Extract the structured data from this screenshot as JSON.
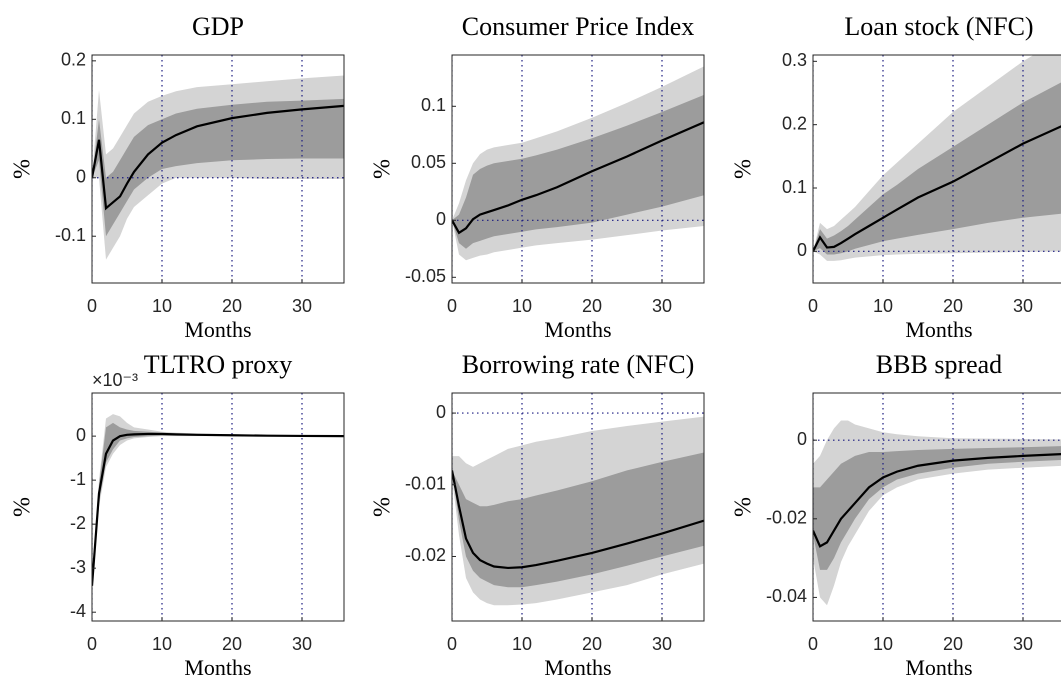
{
  "chart_data": [
    {
      "type": "line",
      "title": "GDP",
      "xlabel": "Months",
      "ylabel": "%",
      "x": [
        0,
        1,
        2,
        3,
        4,
        5,
        6,
        8,
        10,
        12,
        15,
        20,
        25,
        30,
        36
      ],
      "xlim": [
        0,
        36
      ],
      "xticks": [
        0,
        10,
        20,
        30
      ],
      "ylim": [
        -0.18,
        0.21
      ],
      "yticks": [
        -0.1,
        0,
        0.1,
        0.2
      ],
      "grid": true,
      "zero_line": true,
      "bands": [
        {
          "color": "#d4d4d4",
          "lower": [
            0,
            0.0,
            -0.14,
            -0.12,
            -0.1,
            -0.07,
            -0.05,
            -0.03,
            -0.01,
            0,
            0,
            0,
            -0.002,
            -0.002,
            -0.002
          ],
          "upper": [
            0,
            0.15,
            0.04,
            0.05,
            0.07,
            0.09,
            0.11,
            0.13,
            0.14,
            0.148,
            0.155,
            0.16,
            0.165,
            0.17,
            0.175
          ]
        },
        {
          "color": "#9c9c9c",
          "lower": [
            0,
            0.03,
            -0.1,
            -0.08,
            -0.06,
            -0.04,
            -0.02,
            0.0,
            0.015,
            0.02,
            0.025,
            0.03,
            0.032,
            0.033,
            0.033
          ],
          "upper": [
            0,
            0.1,
            0.0,
            0.01,
            0.03,
            0.05,
            0.07,
            0.09,
            0.1,
            0.11,
            0.118,
            0.125,
            0.13,
            0.132,
            0.135
          ]
        }
      ],
      "series": [
        {
          "color": "#000000",
          "values": [
            0,
            0.065,
            -0.052,
            -0.042,
            -0.032,
            -0.01,
            0.01,
            0.04,
            0.06,
            0.073,
            0.088,
            0.102,
            0.111,
            0.117,
            0.123
          ]
        }
      ]
    },
    {
      "type": "line",
      "title": "Consumer Price Index",
      "xlabel": "Months",
      "ylabel": "%",
      "x": [
        0,
        1,
        2,
        3,
        4,
        5,
        6,
        8,
        10,
        12,
        15,
        20,
        25,
        30,
        36
      ],
      "xlim": [
        0,
        36
      ],
      "xticks": [
        0,
        10,
        20,
        30
      ],
      "ylim": [
        -0.055,
        0.145
      ],
      "yticks": [
        -0.05,
        0,
        0.05,
        0.1
      ],
      "grid": true,
      "zero_line": true,
      "bands": [
        {
          "color": "#d4d4d4",
          "lower": [
            0,
            -0.03,
            -0.035,
            -0.033,
            -0.031,
            -0.03,
            -0.028,
            -0.026,
            -0.024,
            -0.022,
            -0.02,
            -0.017,
            -0.013,
            -0.009,
            -0.005
          ],
          "upper": [
            0,
            0.015,
            0.035,
            0.05,
            0.058,
            0.062,
            0.064,
            0.066,
            0.068,
            0.072,
            0.078,
            0.09,
            0.103,
            0.117,
            0.135
          ]
        },
        {
          "color": "#9c9c9c",
          "lower": [
            0,
            -0.02,
            -0.025,
            -0.02,
            -0.018,
            -0.016,
            -0.014,
            -0.012,
            -0.01,
            -0.008,
            -0.006,
            -0.002,
            0.005,
            0.012,
            0.022
          ],
          "upper": [
            0,
            0.005,
            0.02,
            0.04,
            0.045,
            0.048,
            0.05,
            0.052,
            0.054,
            0.057,
            0.062,
            0.072,
            0.083,
            0.095,
            0.11
          ]
        }
      ],
      "series": [
        {
          "color": "#000000",
          "values": [
            0,
            -0.011,
            -0.007,
            0.001,
            0.005,
            0.007,
            0.009,
            0.013,
            0.018,
            0.022,
            0.029,
            0.043,
            0.056,
            0.07,
            0.086
          ]
        }
      ]
    },
    {
      "type": "line",
      "title": "Loan stock (NFC)",
      "xlabel": "Months",
      "ylabel": "%",
      "x": [
        0,
        1,
        2,
        3,
        4,
        5,
        6,
        8,
        10,
        12,
        15,
        20,
        25,
        30,
        36
      ],
      "xlim": [
        0,
        36
      ],
      "xticks": [
        0,
        10,
        20,
        30
      ],
      "ylim": [
        -0.05,
        0.31
      ],
      "yticks": [
        0,
        0.1,
        0.2,
        0.3
      ],
      "grid": true,
      "zero_line": true,
      "bands": [
        {
          "color": "#d4d4d4",
          "lower": [
            0,
            -0.005,
            -0.015,
            -0.015,
            -0.014,
            -0.012,
            -0.01,
            -0.008,
            -0.006,
            -0.005,
            -0.004,
            -0.003,
            -0.002,
            -0.001,
            0
          ],
          "upper": [
            0,
            0.045,
            0.035,
            0.04,
            0.05,
            0.06,
            0.07,
            0.095,
            0.12,
            0.14,
            0.17,
            0.22,
            0.26,
            0.3,
            0.34
          ]
        },
        {
          "color": "#9c9c9c",
          "lower": [
            0,
            0.005,
            -0.005,
            -0.005,
            -0.003,
            0,
            0.004,
            0.01,
            0.016,
            0.02,
            0.026,
            0.035,
            0.045,
            0.053,
            0.06
          ],
          "upper": [
            0,
            0.035,
            0.02,
            0.025,
            0.032,
            0.04,
            0.05,
            0.07,
            0.09,
            0.105,
            0.13,
            0.165,
            0.2,
            0.235,
            0.27
          ]
        }
      ],
      "series": [
        {
          "color": "#000000",
          "values": [
            0,
            0.022,
            0.006,
            0.007,
            0.013,
            0.02,
            0.027,
            0.04,
            0.053,
            0.066,
            0.085,
            0.11,
            0.14,
            0.17,
            0.2
          ]
        }
      ]
    },
    {
      "type": "line",
      "title": "TLTRO proxy",
      "xlabel": "Months",
      "ylabel": "%",
      "y_multiplier": "×10⁻³",
      "x": [
        0,
        1,
        2,
        3,
        4,
        5,
        6,
        8,
        10,
        12,
        15,
        20,
        25,
        30,
        36
      ],
      "xlim": [
        0,
        36
      ],
      "xticks": [
        0,
        10,
        20,
        30
      ],
      "ylim": [
        -4.2,
        0.98
      ],
      "yticks": [
        -4,
        -3,
        -2,
        -1,
        0
      ],
      "grid": true,
      "zero_line": false,
      "bands": [
        {
          "color": "#d4d4d4",
          "lower": [
            -3.4,
            -1.6,
            -0.7,
            -0.4,
            -0.2,
            -0.1,
            -0.05,
            -0.02,
            0,
            0,
            0,
            0,
            0,
            0,
            0
          ],
          "upper": [
            -3.4,
            -1.0,
            0.4,
            0.5,
            0.45,
            0.3,
            0.2,
            0.15,
            0.1,
            0.08,
            0.06,
            0.04,
            0.02,
            0.01,
            0.005
          ]
        },
        {
          "color": "#9c9c9c",
          "lower": [
            -3.4,
            -1.5,
            -0.6,
            -0.3,
            -0.1,
            -0.05,
            -0.02,
            0,
            0.01,
            0.01,
            0.01,
            0.01,
            0.005,
            0,
            0
          ],
          "upper": [
            -3.4,
            -1.1,
            0.2,
            0.3,
            0.2,
            0.15,
            0.12,
            0.1,
            0.08,
            0.06,
            0.05,
            0.03,
            0.015,
            0.01,
            0.005
          ]
        }
      ],
      "series": [
        {
          "color": "#000000",
          "values": [
            -3.4,
            -1.3,
            -0.4,
            -0.1,
            0,
            0.03,
            0.04,
            0.05,
            0.05,
            0.04,
            0.03,
            0.02,
            0.01,
            0.005,
            0
          ]
        }
      ]
    },
    {
      "type": "line",
      "title": "Borrowing rate (NFC)",
      "xlabel": "Months",
      "ylabel": "%",
      "x": [
        0,
        1,
        2,
        3,
        4,
        5,
        6,
        8,
        10,
        12,
        15,
        20,
        25,
        30,
        36
      ],
      "xlim": [
        0,
        36
      ],
      "xticks": [
        0,
        10,
        20,
        30
      ],
      "ylim": [
        -0.029,
        0.0028
      ],
      "yticks": [
        -0.02,
        -0.01,
        0
      ],
      "grid": true,
      "zero_line": true,
      "bands": [
        {
          "color": "#d4d4d4",
          "lower": [
            -0.009,
            -0.017,
            -0.023,
            -0.025,
            -0.026,
            -0.0265,
            -0.0268,
            -0.0268,
            -0.0267,
            -0.0265,
            -0.026,
            -0.025,
            -0.024,
            -0.0225,
            -0.021
          ],
          "upper": [
            -0.006,
            -0.006,
            -0.007,
            -0.0075,
            -0.007,
            -0.0065,
            -0.006,
            -0.005,
            -0.0045,
            -0.004,
            -0.0035,
            -0.0025,
            -0.0018,
            -0.0012,
            -0.0005
          ]
        },
        {
          "color": "#9c9c9c",
          "lower": [
            -0.008,
            -0.015,
            -0.02,
            -0.022,
            -0.023,
            -0.0235,
            -0.024,
            -0.0243,
            -0.0243,
            -0.024,
            -0.0235,
            -0.0225,
            -0.0213,
            -0.02,
            -0.0185
          ],
          "upper": [
            -0.008,
            -0.01,
            -0.012,
            -0.0125,
            -0.013,
            -0.013,
            -0.0128,
            -0.0123,
            -0.012,
            -0.0115,
            -0.0108,
            -0.0095,
            -0.008,
            -0.0068,
            -0.0055
          ]
        }
      ],
      "series": [
        {
          "color": "#000000",
          "values": [
            -0.008,
            -0.013,
            -0.0175,
            -0.0195,
            -0.0205,
            -0.021,
            -0.0214,
            -0.0216,
            -0.0215,
            -0.0212,
            -0.0206,
            -0.0195,
            -0.0182,
            -0.0168,
            -0.015
          ]
        }
      ]
    },
    {
      "type": "line",
      "title": "BBB spread",
      "xlabel": "Months",
      "ylabel": "%",
      "x": [
        0,
        1,
        2,
        3,
        4,
        5,
        6,
        8,
        10,
        12,
        15,
        20,
        25,
        30,
        36
      ],
      "xlim": [
        0,
        36
      ],
      "xticks": [
        0,
        10,
        20,
        30
      ],
      "ylim": [
        -0.046,
        0.012
      ],
      "yticks": [
        -0.04,
        -0.02,
        0
      ],
      "grid": true,
      "zero_line": true,
      "bands": [
        {
          "color": "#d4d4d4",
          "lower": [
            -0.03,
            -0.04,
            -0.042,
            -0.037,
            -0.031,
            -0.027,
            -0.024,
            -0.018,
            -0.014,
            -0.012,
            -0.01,
            -0.0085,
            -0.0075,
            -0.007,
            -0.0065
          ],
          "upper": [
            -0.006,
            -0.004,
            0.0,
            0.003,
            0.005,
            0.005,
            0.004,
            0.003,
            0.002,
            0.0015,
            0.001,
            0.0005,
            0.0004,
            0.0003,
            0.0002
          ]
        },
        {
          "color": "#9c9c9c",
          "lower": [
            -0.024,
            -0.033,
            -0.033,
            -0.03,
            -0.026,
            -0.023,
            -0.02,
            -0.015,
            -0.012,
            -0.01,
            -0.0085,
            -0.007,
            -0.006,
            -0.0055,
            -0.005
          ],
          "upper": [
            -0.012,
            -0.012,
            -0.01,
            -0.008,
            -0.006,
            -0.005,
            -0.004,
            -0.003,
            -0.003,
            -0.0028,
            -0.0025,
            -0.0022,
            -0.002,
            -0.0018,
            -0.0015
          ]
        }
      ],
      "series": [
        {
          "color": "#000000",
          "values": [
            -0.023,
            -0.027,
            -0.026,
            -0.023,
            -0.02,
            -0.018,
            -0.016,
            -0.012,
            -0.0095,
            -0.008,
            -0.0065,
            -0.0052,
            -0.0045,
            -0.004,
            -0.0035
          ]
        }
      ]
    }
  ]
}
